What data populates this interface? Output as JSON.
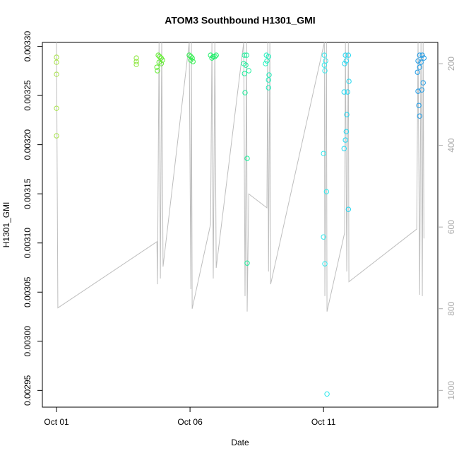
{
  "chart_data": {
    "type": "scatter",
    "title": "ATOM3 Southbound H1301_GMI",
    "xlabel": "Date",
    "ylabel": "H1301_GMI",
    "xlim": [
      0.47,
      15.28
    ],
    "xticks": [
      {
        "value": 1,
        "label": "Oct 01"
      },
      {
        "value": 6,
        "label": "Oct 06"
      },
      {
        "value": 11,
        "label": "Oct 11"
      }
    ],
    "ylim": [
      0.002933,
      0.003304
    ],
    "yticks": [
      {
        "value": 0.00295,
        "label": "0.00295"
      },
      {
        "value": 0.003,
        "label": "0.00300"
      },
      {
        "value": 0.00305,
        "label": "0.00305"
      },
      {
        "value": 0.0031,
        "label": "0.00310"
      },
      {
        "value": 0.00315,
        "label": "0.00315"
      },
      {
        "value": 0.0032,
        "label": "0.00320"
      },
      {
        "value": 0.00325,
        "label": "0.00325"
      },
      {
        "value": 0.0033,
        "label": "0.00330"
      }
    ],
    "y2lim": [
      1041,
      148
    ],
    "y2ticks": [
      200,
      400,
      600,
      800,
      1000
    ],
    "x": [
      1.0,
      1.0,
      1.0,
      1.0,
      1.0,
      3.99,
      3.99,
      3.99,
      4.81,
      4.86,
      4.92,
      4.97,
      4.84,
      4.76,
      4.78,
      4.92,
      5.97,
      6.03,
      6.08,
      6.03,
      6.11,
      6.77,
      6.87,
      6.98,
      6.93,
      6.82,
      8.04,
      8.12,
      8.01,
      8.09,
      8.04,
      8.2,
      8.06,
      8.14,
      8.14,
      8.86,
      8.94,
      8.88,
      8.83,
      8.96,
      8.94,
      8.94,
      11.03,
      11.08,
      11.03,
      11.05,
      11.0,
      11.11,
      11.0,
      11.05,
      11.13,
      11.82,
      11.93,
      11.85,
      11.79,
      11.95,
      11.77,
      11.9,
      11.87,
      11.85,
      11.82,
      11.77,
      11.93,
      14.6,
      14.7,
      14.54,
      14.65,
      14.76,
      14.6,
      14.52,
      14.73,
      14.54,
      14.68,
      14.57,
      14.6
    ],
    "values": [
      0.0032889,
      0.0032838,
      0.0032716,
      0.003237,
      0.003209,
      0.0032881,
      0.0032845,
      0.0032816,
      0.003291,
      0.0032896,
      0.0032881,
      0.003286,
      0.0032838,
      0.0032788,
      0.0032752,
      0.0032824,
      0.003291,
      0.0032896,
      0.0032881,
      0.003286,
      0.0032845,
      0.003291,
      0.0032896,
      0.003291,
      0.0032896,
      0.0032881,
      0.003291,
      0.003291,
      0.0032824,
      0.0032809,
      0.0032723,
      0.0032752,
      0.0032529,
      0.003186,
      0.0030795,
      0.003291,
      0.0032896,
      0.0032852,
      0.0032824,
      0.0032709,
      0.0032658,
      0.0032579,
      0.003291,
      0.0032852,
      0.0032809,
      0.0032752,
      0.003191,
      0.0031522,
      0.0031061,
      0.0030788,
      0.0029464,
      0.003291,
      0.003291,
      0.0032852,
      0.0032824,
      0.0032644,
      0.0032536,
      0.0032536,
      0.0032306,
      0.0032133,
      0.0032047,
      0.003196,
      0.0031342,
      0.003291,
      0.003291,
      0.0032852,
      0.0032838,
      0.0032881,
      0.0032788,
      0.0032737,
      0.0032629,
      0.0032543,
      0.0032557,
      0.0032399,
      0.0032291
    ],
    "colors": [
      "#a8e34a",
      "#a8e34a",
      "#a8e34a",
      "#a8e34a",
      "#a8e34a",
      "#8ce63c",
      "#8ce63c",
      "#8ce63c",
      "#5cec2a",
      "#5cec2a",
      "#5cec2a",
      "#5cec2a",
      "#5cec2a",
      "#5cec2a",
      "#5cec2a",
      "#5cec2a",
      "#2cf04a",
      "#2cf04a",
      "#2cf04a",
      "#2cf04a",
      "#2cf04a",
      "#1cf068",
      "#1cf068",
      "#1cf068",
      "#1cf068",
      "#1cf068",
      "#1cf09c",
      "#1cf09c",
      "#1cf09c",
      "#1cf09c",
      "#1cf09c",
      "#1cf09c",
      "#1cf09c",
      "#1cf09c",
      "#1cf09c",
      "#1ef0bc",
      "#1ef0bc",
      "#1ef0bc",
      "#1ef0bc",
      "#1ef0bc",
      "#1ef0bc",
      "#1ef0bc",
      "#2ee8ec",
      "#2ee8ec",
      "#2ee8ec",
      "#2ee8ec",
      "#2ee8ec",
      "#2ee8ec",
      "#2ee8ec",
      "#2ee8ec",
      "#2ee8ec",
      "#1ed6f0",
      "#1ed6f0",
      "#1ed6f0",
      "#1ed6f0",
      "#1ed6f0",
      "#1ed6f0",
      "#1ed6f0",
      "#1ed6f0",
      "#1ed6f0",
      "#1ed6f0",
      "#1ed6f0",
      "#1ed6f0",
      "#1a9ae6",
      "#1a9ae6",
      "#1a9ae6",
      "#1a9ae6",
      "#1a9ae6",
      "#1a9ae6",
      "#1a9ae6",
      "#1a9ae6",
      "#1a9ae6",
      "#1a9ae6",
      "#1a9ae6",
      "#1a9ae6"
    ],
    "line": {
      "axis": "y2",
      "color": "#bebebe",
      "x": [
        1.0,
        1.05,
        4.76,
        4.78,
        4.84,
        4.89,
        4.94,
        4.99,
        5.97,
        6.03,
        6.05,
        6.08,
        6.77,
        6.82,
        6.87,
        6.93,
        6.98,
        8.01,
        8.06,
        8.12,
        8.14,
        8.2,
        8.88,
        8.91,
        8.94,
        8.99,
        9.02,
        11.03,
        11.05,
        11.11,
        11.13,
        11.79,
        11.82,
        11.87,
        11.93,
        11.95,
        14.49,
        14.54,
        14.6,
        14.65,
        14.7,
        14.73,
        14.76
      ],
      "values": [
        148,
        798,
        636,
        740,
        148,
        726,
        148,
        697,
        148,
        752,
        148,
        800,
        593,
        148,
        726,
        148,
        700,
        148,
        769,
        148,
        807,
        519,
        553,
        148,
        709,
        148,
        740,
        148,
        769,
        148,
        807,
        614,
        148,
        709,
        148,
        734,
        605,
        148,
        766,
        148,
        769,
        148,
        628
      ]
    }
  }
}
